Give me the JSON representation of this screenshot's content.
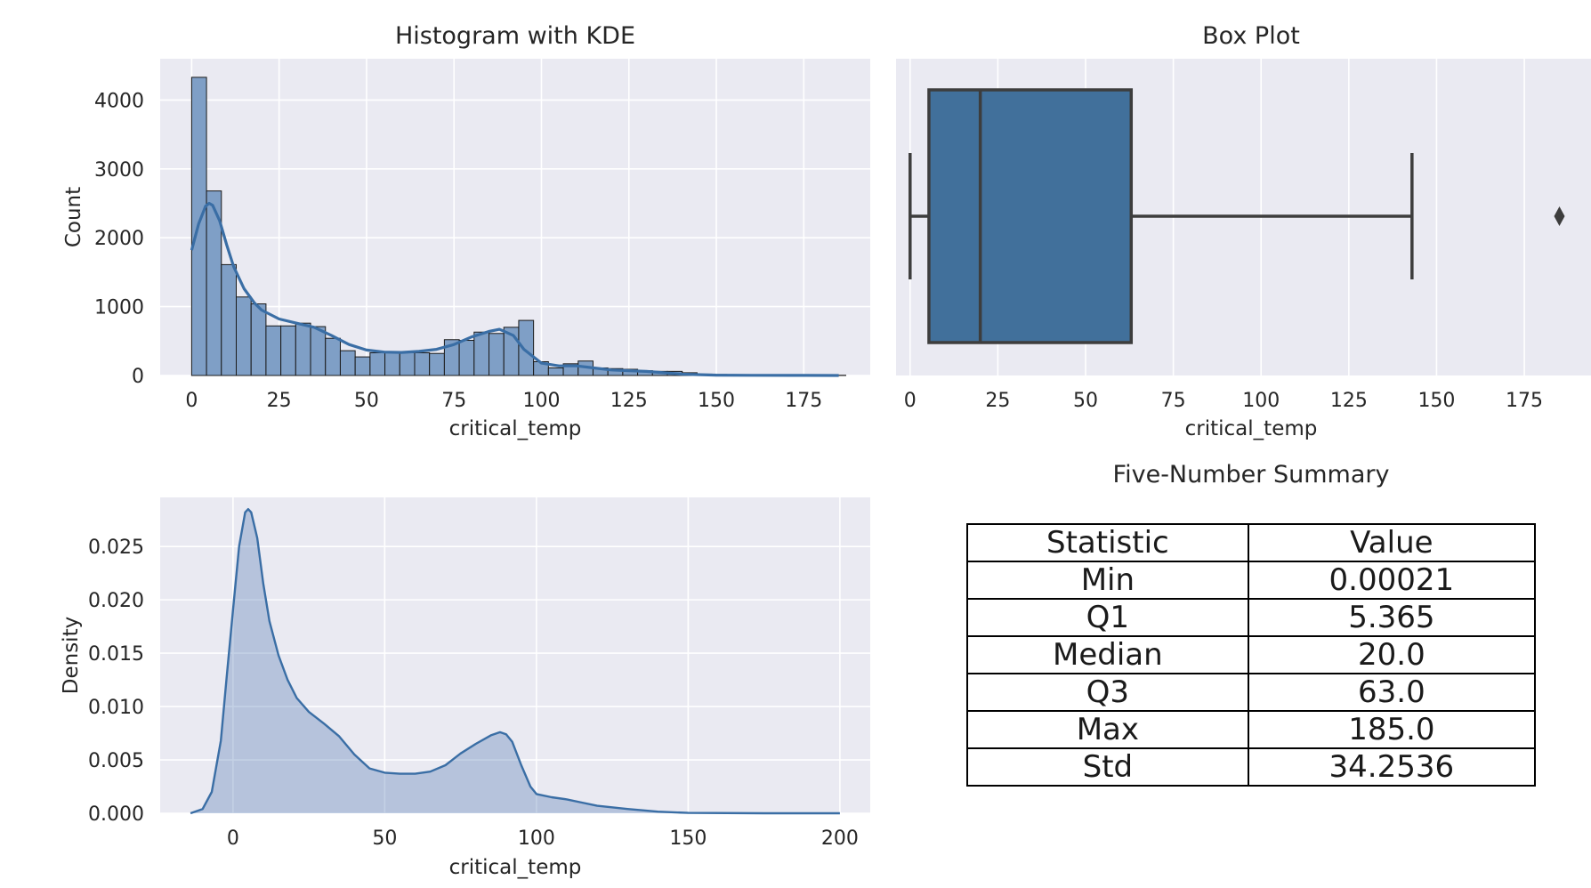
{
  "colors": {
    "panel_bg": "#eaeaf2",
    "grid": "#ffffff",
    "primary": "#4c72b0",
    "bar_fill": "#7f9fc6",
    "kde_line": "#3a6ea5",
    "box_fill": "#41709b",
    "box_edge": "#3d3d3d"
  },
  "chart_data": [
    {
      "type": "bar",
      "title": "Histogram with KDE",
      "xlabel": "critical_temp",
      "ylabel": "Count",
      "xlim": [
        -9,
        194
      ],
      "ylim": [
        0,
        4600
      ],
      "xticks": [
        0,
        25,
        50,
        75,
        100,
        125,
        150,
        175
      ],
      "yticks": [
        0,
        1000,
        2000,
        3000,
        4000
      ],
      "grid": true,
      "bin_width": 4.25,
      "bin_start": 0,
      "values": [
        4330,
        2680,
        1610,
        1140,
        1040,
        720,
        720,
        760,
        710,
        540,
        360,
        270,
        330,
        330,
        330,
        330,
        320,
        520,
        510,
        630,
        610,
        700,
        800,
        200,
        110,
        170,
        210,
        110,
        100,
        90,
        70,
        60,
        60,
        40,
        20,
        15,
        10,
        10,
        5,
        5,
        5,
        5,
        3,
        3
      ],
      "kde": {
        "x": [
          0,
          2,
          4,
          5,
          6,
          8,
          10,
          12,
          15,
          18,
          20,
          25,
          30,
          35,
          40,
          45,
          50,
          55,
          60,
          65,
          70,
          75,
          80,
          85,
          88,
          92,
          95,
          100,
          105,
          110,
          115,
          120,
          125,
          130,
          135,
          140,
          150,
          160,
          175,
          185
        ],
        "y": [
          1820,
          2200,
          2460,
          2500,
          2470,
          2250,
          1900,
          1580,
          1260,
          1050,
          950,
          820,
          760,
          700,
          580,
          450,
          370,
          340,
          335,
          350,
          380,
          450,
          560,
          640,
          670,
          580,
          380,
          180,
          140,
          140,
          110,
          80,
          70,
          60,
          40,
          20,
          5,
          2,
          1,
          0
        ]
      }
    },
    {
      "type": "box",
      "title": "Box Plot",
      "xlabel": "critical_temp",
      "xlim": [
        -4,
        194
      ],
      "xticks": [
        0,
        25,
        50,
        75,
        100,
        125,
        150,
        175
      ],
      "grid": true,
      "whisker_low": 0.00021,
      "q1": 5.365,
      "median": 20.0,
      "q3": 63.0,
      "whisker_high": 143.0,
      "outliers": [
        185.0
      ]
    },
    {
      "type": "area",
      "xlabel": "critical_temp",
      "ylabel": "Density",
      "xlim": [
        -24,
        210
      ],
      "ylim": [
        0,
        0.0296
      ],
      "xticks": [
        0,
        50,
        100,
        150,
        200
      ],
      "yticks": [
        0,
        0.005,
        0.01,
        0.015,
        0.02,
        0.025
      ],
      "yticklabels": [
        "0.000",
        "0.005",
        "0.010",
        "0.015",
        "0.020",
        "0.025"
      ],
      "grid": true,
      "x": [
        -14,
        -10,
        -7,
        -4,
        -2,
        0,
        2,
        4,
        5,
        6,
        8,
        10,
        12,
        15,
        18,
        21,
        25,
        30,
        35,
        40,
        45,
        50,
        55,
        60,
        65,
        70,
        75,
        80,
        85,
        88,
        90,
        92,
        95,
        98,
        100,
        105,
        110,
        115,
        120,
        130,
        140,
        150,
        175,
        200
      ],
      "y": [
        0,
        0.0004,
        0.002,
        0.0068,
        0.013,
        0.019,
        0.025,
        0.0282,
        0.0285,
        0.0282,
        0.0258,
        0.0215,
        0.018,
        0.0148,
        0.0125,
        0.0108,
        0.0095,
        0.0084,
        0.0072,
        0.0055,
        0.0042,
        0.0038,
        0.0037,
        0.0037,
        0.0039,
        0.0045,
        0.0056,
        0.0065,
        0.0073,
        0.0076,
        0.0074,
        0.0067,
        0.0045,
        0.0025,
        0.0018,
        0.0015,
        0.0013,
        0.001,
        0.0007,
        0.0004,
        0.00015,
        3e-05,
        0,
        0
      ]
    }
  ],
  "summary_table": {
    "title": "Five-Number Summary",
    "headers": [
      "Statistic",
      "Value"
    ],
    "rows": [
      [
        "Min",
        "0.00021"
      ],
      [
        "Q1",
        "5.365"
      ],
      [
        "Median",
        "20.0"
      ],
      [
        "Q3",
        "63.0"
      ],
      [
        "Max",
        "185.0"
      ],
      [
        "Std",
        "34.2536"
      ]
    ]
  }
}
